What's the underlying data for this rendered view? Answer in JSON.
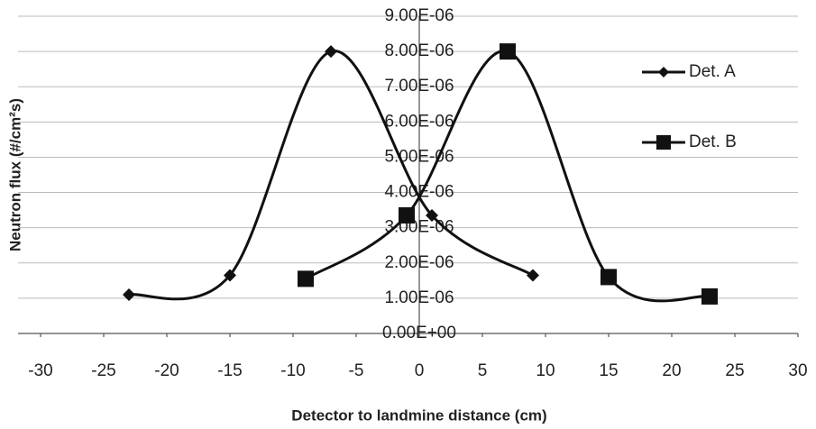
{
  "chart_data": {
    "type": "line",
    "smooth": true,
    "grid": true,
    "legend": "right",
    "x_label": "Detector to landmine distance (cm)",
    "y_label": "Neutron flux (#/cm²s)",
    "xlim": [
      -30,
      30
    ],
    "xticks": [
      -30,
      -25,
      -20,
      -15,
      -10,
      -5,
      0,
      5,
      10,
      15,
      20,
      25,
      30
    ],
    "ylim": [
      0,
      9e-06
    ],
    "yticks": [
      {
        "value": 0,
        "label": "0.00E+00"
      },
      {
        "value": 1e-06,
        "label": "1.00E-06"
      },
      {
        "value": 2e-06,
        "label": "2.00E-06"
      },
      {
        "value": 3e-06,
        "label": "3.00E-06"
      },
      {
        "value": 4e-06,
        "label": "4.00E-06"
      },
      {
        "value": 5e-06,
        "label": "5.00E-06"
      },
      {
        "value": 6e-06,
        "label": "6.00E-06"
      },
      {
        "value": 7e-06,
        "label": "7.00E-06"
      },
      {
        "value": 8e-06,
        "label": "8.00E-06"
      },
      {
        "value": 9e-06,
        "label": "9.00E-06"
      }
    ],
    "series": [
      {
        "name": "Det. A",
        "color": "#111111",
        "marker": "diamond",
        "x": [
          -23,
          -15,
          -7,
          1,
          9
        ],
        "values": [
          1.1e-06,
          1.65e-06,
          8e-06,
          3.35e-06,
          1.65e-06
        ]
      },
      {
        "name": "Det. B",
        "color": "#111111",
        "marker": "square",
        "x": [
          -9,
          -1,
          7,
          15,
          23
        ],
        "values": [
          1.55e-06,
          3.35e-06,
          8e-06,
          1.6e-06,
          1.05e-06
        ]
      }
    ]
  }
}
